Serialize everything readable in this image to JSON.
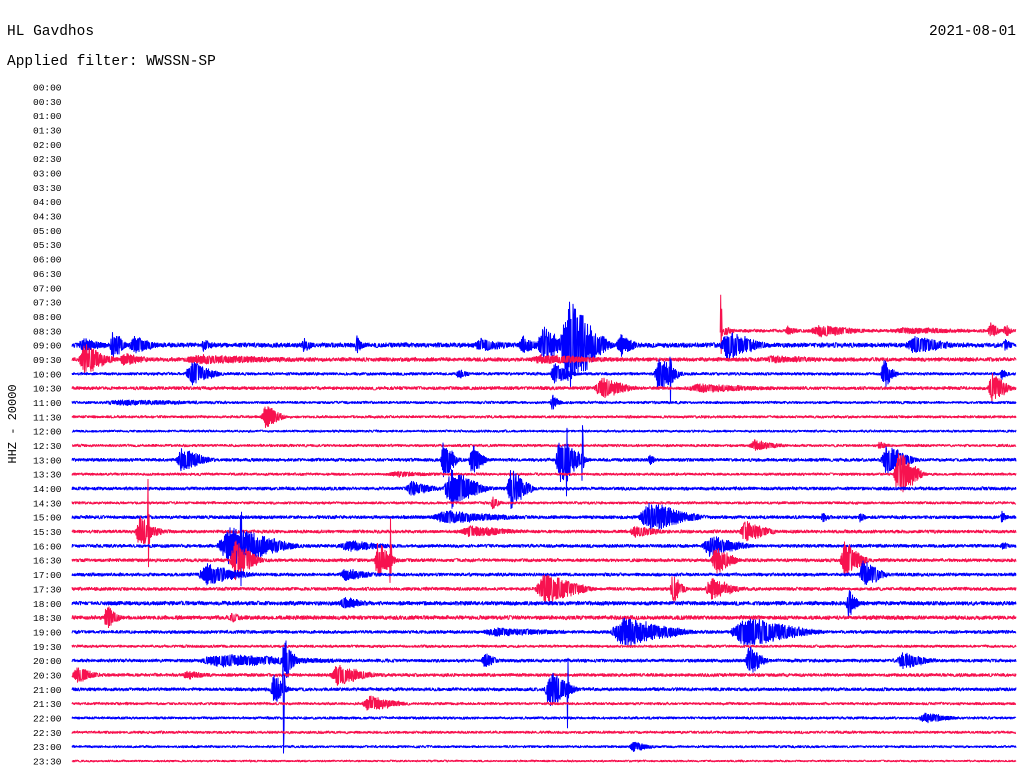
{
  "chart_data": {
    "type": "line",
    "title": "HL Gavdhos",
    "date": "2021-08-01",
    "subtitle": "Applied filter: WWSSN-SP",
    "ylabel": "HHZ - 20000",
    "colors": {
      "on_the_hour": "#0000ff",
      "half_past": "#f7124f"
    },
    "rows": [
      {
        "label": "00:00"
      },
      {
        "label": "00:30"
      },
      {
        "label": "01:00"
      },
      {
        "label": "01:30"
      },
      {
        "label": "02:00"
      },
      {
        "label": "02:30"
      },
      {
        "label": "03:00"
      },
      {
        "label": "03:30"
      },
      {
        "label": "04:00"
      },
      {
        "label": "04:30"
      },
      {
        "label": "05:00"
      },
      {
        "label": "05:30"
      },
      {
        "label": "06:00"
      },
      {
        "label": "06:30"
      },
      {
        "label": "07:00"
      },
      {
        "label": "07:30"
      },
      {
        "label": "08:00"
      },
      {
        "label": "08:30",
        "start_min": 20.6,
        "noise": 2500,
        "events": [
          [
            20.6,
            20.68,
            90000
          ],
          [
            20.68,
            21.1,
            6000
          ],
          [
            22.66,
            23.14,
            5000
          ],
          [
            23.45,
            25.36,
            8000
          ],
          [
            26.0,
            29.0,
            3000
          ],
          [
            29.1,
            29.6,
            11000
          ],
          [
            29.6,
            29.95,
            9000
          ]
        ]
      },
      {
        "label": "09:00",
        "noise": 3500,
        "events": [
          [
            0.2,
            1.2,
            8000
          ],
          [
            1.2,
            1.8,
            21000
          ],
          [
            1.8,
            2.9,
            11000
          ],
          [
            4.1,
            4.6,
            7000
          ],
          [
            7.3,
            7.7,
            8000
          ],
          [
            9.0,
            9.3,
            11000
          ],
          [
            12.8,
            14.0,
            8000
          ],
          [
            14.2,
            15.0,
            11000
          ],
          [
            14.8,
            15.8,
            30000
          ],
          [
            15.5,
            17.3,
            65000
          ],
          [
            17.3,
            18.1,
            14000
          ],
          [
            20.6,
            22.2,
            21000
          ],
          [
            26.5,
            28.2,
            11000
          ],
          [
            29.6,
            29.9,
            8000
          ]
        ]
      },
      {
        "label": "09:30",
        "noise": 3000,
        "events": [
          [
            0.2,
            1.5,
            21000
          ],
          [
            1.5,
            2.5,
            8000
          ],
          [
            3.5,
            7.5,
            5000
          ],
          [
            14.5,
            17.5,
            5000
          ],
          [
            22.0,
            24.0,
            4000
          ]
        ]
      },
      {
        "label": "10:00",
        "noise": 2200,
        "events": [
          [
            3.6,
            4.9,
            17000
          ],
          [
            12.2,
            12.7,
            7000
          ],
          [
            15.2,
            16.1,
            14000
          ],
          [
            18.5,
            19.5,
            28000
          ],
          [
            19.0,
            19.08,
            55000
          ],
          [
            25.7,
            26.3,
            21000
          ],
          [
            29.5,
            29.8,
            8000
          ]
        ]
      },
      {
        "label": "10:30",
        "noise": 2500,
        "events": [
          [
            16.6,
            18.1,
            14000
          ],
          [
            19.5,
            22.5,
            5000
          ],
          [
            29.1,
            30.0,
            21000
          ]
        ]
      },
      {
        "label": "11:00",
        "noise": 2000,
        "events": [
          [
            1.0,
            5.0,
            3000
          ],
          [
            15.2,
            15.6,
            11000
          ]
        ]
      },
      {
        "label": "11:30",
        "noise": 2000,
        "events": [
          [
            6.0,
            6.9,
            17000
          ]
        ]
      },
      {
        "label": "12:00",
        "noise": 1800,
        "events": []
      },
      {
        "label": "12:30",
        "noise": 2000,
        "events": [
          [
            21.5,
            22.8,
            7000
          ],
          [
            25.6,
            26.0,
            5000
          ]
        ]
      },
      {
        "label": "13:00",
        "noise": 2500,
        "events": [
          [
            3.3,
            4.6,
            17000
          ],
          [
            11.7,
            12.4,
            28000
          ],
          [
            12.6,
            13.3,
            21000
          ],
          [
            15.35,
            16.5,
            35000
          ],
          [
            15.7,
            15.78,
            60000
          ],
          [
            16.2,
            16.28,
            56000
          ],
          [
            18.3,
            18.6,
            8000
          ],
          [
            25.7,
            27.0,
            21000
          ]
        ]
      },
      {
        "label": "13:30",
        "noise": 2000,
        "events": [
          [
            10.0,
            12.0,
            3000
          ],
          [
            26.1,
            27.2,
            35000
          ]
        ]
      },
      {
        "label": "14:00",
        "noise": 2500,
        "events": [
          [
            10.6,
            11.8,
            10000
          ],
          [
            11.8,
            13.4,
            28000
          ],
          [
            13.8,
            14.8,
            28000
          ]
        ]
      },
      {
        "label": "14:30",
        "noise": 2000,
        "events": [
          [
            13.3,
            13.7,
            8000
          ]
        ]
      },
      {
        "label": "15:00",
        "noise": 2500,
        "events": [
          [
            11.4,
            14.6,
            8000
          ],
          [
            18.0,
            20.3,
            21000
          ],
          [
            23.8,
            24.1,
            7000
          ],
          [
            25.0,
            25.3,
            7000
          ],
          [
            29.5,
            29.8,
            7000
          ]
        ]
      },
      {
        "label": "15:30",
        "noise": 2500,
        "events": [
          [
            2.0,
            3.0,
            21000
          ],
          [
            2.4,
            2.48,
            77000
          ],
          [
            12.3,
            14.6,
            7000
          ],
          [
            17.7,
            19.0,
            7000
          ],
          [
            21.2,
            22.5,
            14000
          ]
        ]
      },
      {
        "label": "16:00",
        "noise": 2500,
        "events": [
          [
            4.6,
            7.5,
            28000
          ],
          [
            5.35,
            5.43,
            60000
          ],
          [
            8.5,
            10.4,
            7000
          ],
          [
            20.0,
            21.8,
            14000
          ],
          [
            29.5,
            29.9,
            5000
          ]
        ]
      },
      {
        "label": "16:30",
        "noise": 2500,
        "events": [
          [
            5.0,
            6.2,
            28000
          ],
          [
            9.6,
            10.4,
            28000
          ],
          [
            10.1,
            10.18,
            70000
          ],
          [
            20.3,
            21.3,
            21000
          ],
          [
            24.4,
            25.4,
            28000
          ]
        ]
      },
      {
        "label": "17:00",
        "noise": 2500,
        "events": [
          [
            4.0,
            6.0,
            14000
          ],
          [
            8.5,
            9.8,
            8000
          ],
          [
            25.0,
            26.0,
            21000
          ]
        ]
      },
      {
        "label": "17:30",
        "noise": 2500,
        "events": [
          [
            14.7,
            16.8,
            21000
          ],
          [
            19.0,
            19.6,
            21000
          ],
          [
            20.1,
            21.5,
            14000
          ]
        ]
      },
      {
        "label": "18:00",
        "noise": 3000,
        "events": [
          [
            8.5,
            9.5,
            8000
          ],
          [
            24.6,
            25.1,
            21000
          ]
        ]
      },
      {
        "label": "18:30",
        "noise": 3000,
        "events": [
          [
            1.0,
            1.6,
            17000
          ],
          [
            5.0,
            5.5,
            5000
          ]
        ]
      },
      {
        "label": "19:00",
        "noise": 2500,
        "events": [
          [
            13.0,
            16.0,
            5000
          ],
          [
            17.1,
            20.0,
            21000
          ],
          [
            20.9,
            24.1,
            21000
          ]
        ]
      },
      {
        "label": "19:30",
        "noise": 2000,
        "events": []
      },
      {
        "label": "20:00",
        "noise": 2500,
        "events": [
          [
            4.0,
            9.0,
            8000
          ],
          [
            6.7,
            7.2,
            28000
          ],
          [
            13.0,
            13.6,
            11000
          ],
          [
            21.4,
            22.2,
            21000
          ],
          [
            26.2,
            27.6,
            11000
          ]
        ]
      },
      {
        "label": "20:30",
        "noise": 2500,
        "events": [
          [
            0.0,
            1.0,
            11000
          ],
          [
            3.5,
            4.5,
            5000
          ],
          [
            8.2,
            9.8,
            14000
          ]
        ]
      },
      {
        "label": "21:00",
        "noise": 2500,
        "events": [
          [
            6.3,
            7.0,
            21000
          ],
          [
            6.7,
            6.78,
            130000
          ],
          [
            15.0,
            16.2,
            25000
          ],
          [
            15.73,
            15.81,
            60000
          ]
        ]
      },
      {
        "label": "21:30",
        "noise": 2000,
        "events": [
          [
            9.2,
            10.8,
            11000
          ]
        ]
      },
      {
        "label": "22:00",
        "noise": 2000,
        "events": [
          [
            26.9,
            28.3,
            7000
          ]
        ]
      },
      {
        "label": "22:30",
        "noise": 2000,
        "events": []
      },
      {
        "label": "23:00",
        "noise": 1800,
        "events": [
          [
            17.7,
            18.6,
            7000
          ]
        ]
      },
      {
        "label": "23:30",
        "noise": 1500,
        "events": []
      }
    ]
  }
}
